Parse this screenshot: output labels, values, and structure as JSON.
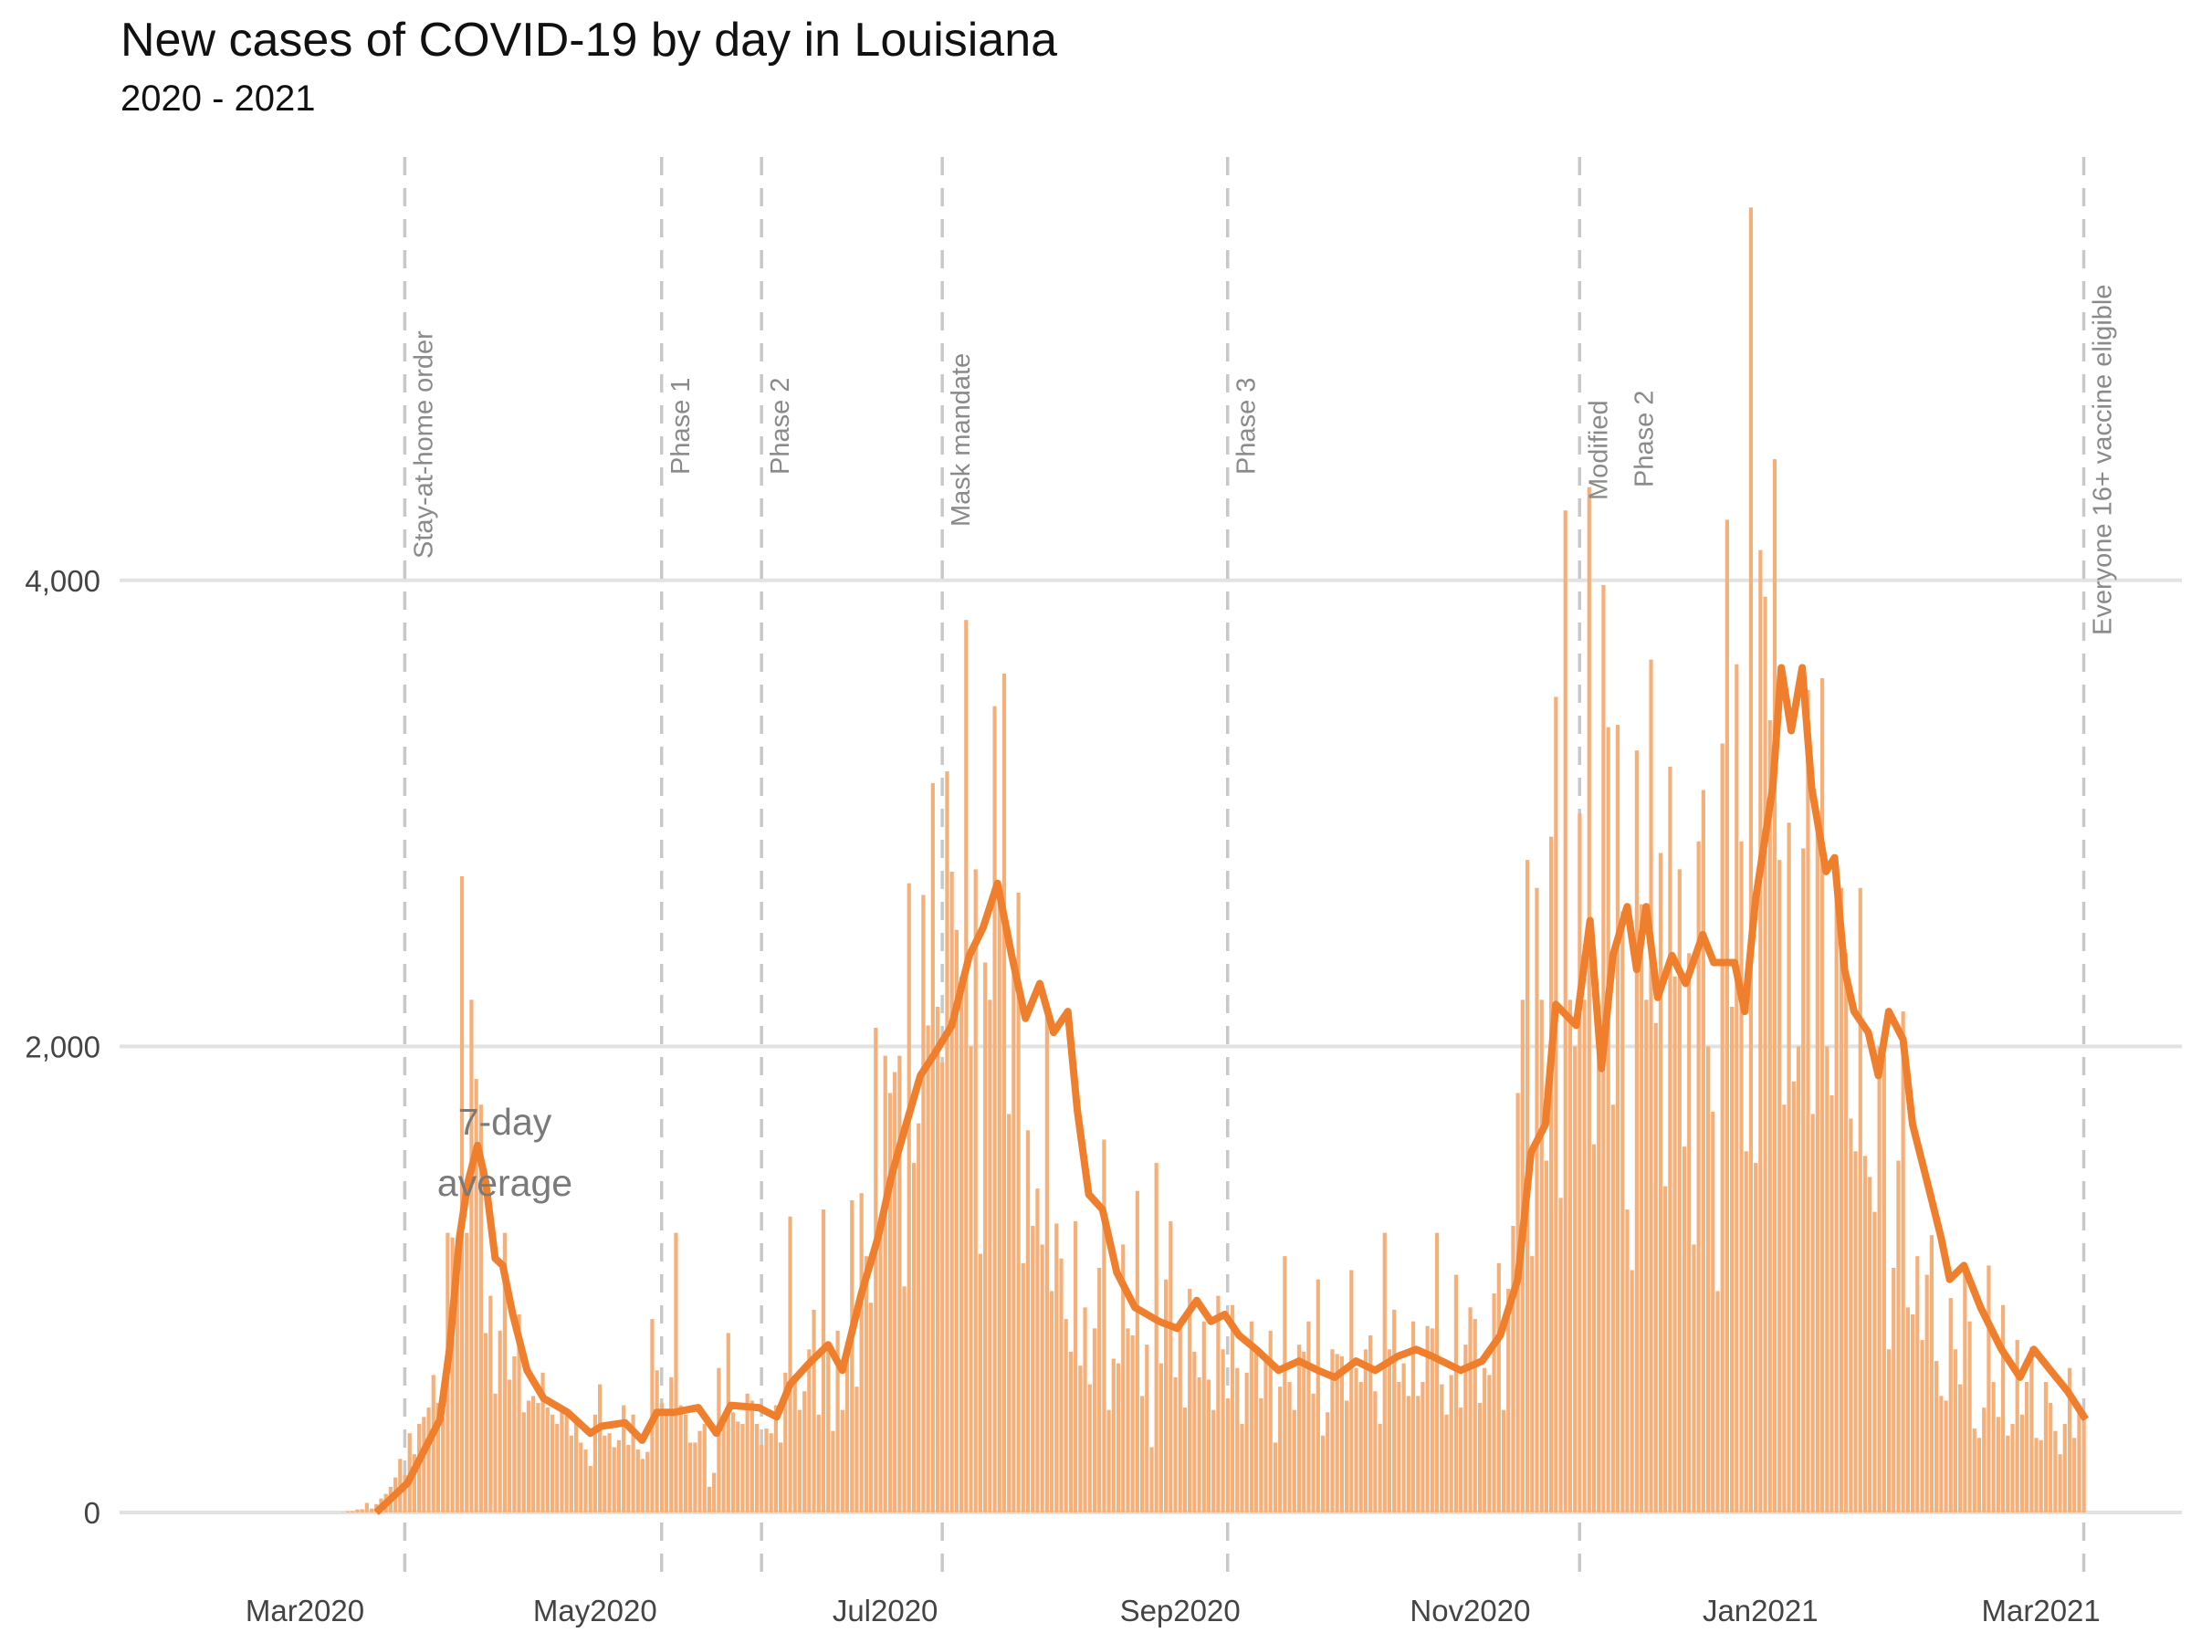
{
  "chart_data": {
    "type": "bar",
    "title": "New cases of COVID-19 by day in Louisiana",
    "subtitle": "2020 - 2021",
    "xlabel": "",
    "ylabel": "",
    "x_unit": "days since 2020-03-01",
    "xlim": [
      -21,
      396
    ],
    "ylim": [
      0,
      5600
    ],
    "grid": true,
    "y_ticks": [
      {
        "value": 0,
        "label": "0"
      },
      {
        "value": 2000,
        "label": "2,000"
      },
      {
        "value": 4000,
        "label": "4,000"
      }
    ],
    "x_ticks": [
      {
        "day": 0,
        "label": "Mar2020"
      },
      {
        "day": 61,
        "label": "May2020"
      },
      {
        "day": 122,
        "label": "Jul2020"
      },
      {
        "day": 184,
        "label": "Sep2020"
      },
      {
        "day": 245,
        "label": "Nov2020"
      },
      {
        "day": 306,
        "label": "Jan2021"
      },
      {
        "day": 365,
        "label": "Mar2021"
      }
    ],
    "events": [
      {
        "day": 21,
        "lines": [
          "Stay-at-home order"
        ]
      },
      {
        "day": 75,
        "lines": [
          "Phase 1"
        ]
      },
      {
        "day": 96,
        "lines": [
          "Phase 2"
        ]
      },
      {
        "day": 134,
        "lines": [
          "Mask mandate"
        ]
      },
      {
        "day": 194,
        "lines": [
          "Phase 3"
        ]
      },
      {
        "day": 268,
        "lines": [
          "Modified",
          "Phase 2"
        ]
      },
      {
        "day": 374,
        "lines": [
          "Everyone 16+ vaccine eligible"
        ]
      }
    ],
    "annotation": {
      "lines": [
        "7-day",
        "average"
      ]
    },
    "bar_color": "#f5b07a",
    "line_color": "#ef7f2d",
    "daily_start_day": 8,
    "daily_cases": [
      1,
      5,
      6,
      13,
      14,
      41,
      17,
      36,
      60,
      80,
      110,
      150,
      230,
      160,
      340,
      250,
      380,
      410,
      450,
      590,
      470,
      410,
      1200,
      1180,
      1050,
      2730,
      1200,
      2200,
      1860,
      1750,
      770,
      930,
      510,
      780,
      1200,
      570,
      670,
      850,
      430,
      480,
      500,
      470,
      600,
      450,
      420,
      380,
      430,
      420,
      330,
      380,
      300,
      270,
      200,
      420,
      550,
      330,
      340,
      280,
      310,
      460,
      290,
      420,
      270,
      230,
      260,
      830,
      610,
      470,
      420,
      580,
      1200,
      460,
      420,
      300,
      300,
      350,
      380,
      110,
      170,
      620,
      400,
      770,
      430,
      390,
      380,
      510,
      480,
      380,
      290,
      360,
      340,
      460,
      300,
      600,
      1270,
      560,
      440,
      520,
      700,
      870,
      420,
      1300,
      700,
      350,
      780,
      440,
      700,
      1340,
      540,
      1370,
      1100,
      900,
      2080,
      1230,
      1960,
      1800,
      1890,
      1960,
      970,
      2700,
      1500,
      1670,
      2650,
      2090,
      3130,
      2170,
      1930,
      3180,
      2750,
      2500,
      2300,
      3830,
      2000,
      2760,
      1110,
      2360,
      2200,
      3460,
      2640,
      3600,
      1710,
      2330,
      2660,
      1070,
      1640,
      1230,
      1390,
      1150,
      2150,
      950,
      1240,
      1090,
      830,
      690,
      1250,
      630,
      880,
      550,
      790,
      1050,
      1600,
      440,
      660,
      640,
      1150,
      790,
      760,
      1380,
      500,
      720,
      280,
      1500,
      640,
      1000,
      1250,
      580,
      810,
      450,
      960,
      690,
      580,
      820,
      570,
      440,
      930,
      700,
      490,
      890,
      620,
      380,
      600,
      820,
      700,
      490,
      670,
      780,
      300,
      540,
      1100,
      560,
      440,
      720,
      690,
      820,
      510,
      1000,
      330,
      430,
      700,
      680,
      670,
      480,
      1040,
      620,
      560,
      700,
      760,
      520,
      380,
      1200,
      700,
      870,
      560,
      640,
      500,
      820,
      500,
      560,
      800,
      790,
      1200,
      550,
      420,
      590,
      1020,
      450,
      720,
      880,
      830,
      470,
      620,
      590,
      940,
      1070,
      440,
      960,
      1230,
      1800,
      2200,
      2800,
      1100,
      2680,
      2200,
      1510,
      2900,
      3500,
      1350,
      4300,
      2200,
      2000,
      3000,
      2200,
      4400,
      1580,
      2000,
      3980,
      3370,
      1750,
      3380,
      2580,
      1300,
      1040,
      3270,
      2610,
      2200,
      3660,
      2100,
      2830,
      1400,
      3200,
      2300,
      2760,
      1570,
      2400,
      1150,
      2880,
      3100,
      2000,
      1720,
      950,
      3300,
      4260,
      2170,
      3640,
      2880,
      1550,
      5600,
      1500,
      4130,
      3930,
      3400,
      4520,
      2800,
      1750,
      2960,
      1850,
      2000,
      2850,
      3530,
      1710,
      2950,
      3580,
      2000,
      1790,
      2700,
      2680,
      2400,
      1690,
      1550,
      2680,
      1530,
      1440,
      1290,
      2000,
      1960,
      700,
      1050,
      1510,
      2150,
      880,
      850,
      1100,
      740,
      1020,
      1190,
      650,
      500,
      480,
      920,
      700,
      550,
      1050,
      820,
      360,
      320,
      450,
      1060,
      560,
      410,
      890,
      330,
      380,
      740,
      420,
      560,
      710,
      320,
      310,
      560,
      470,
      350,
      250,
      380,
      620,
      320,
      460,
      400
    ],
    "seven_day_average": [
      [
        15,
        0
      ],
      [
        21.6,
        127
      ],
      [
        28.4,
        400
      ],
      [
        30.4,
        700
      ],
      [
        32.5,
        1180
      ],
      [
        34.3,
        1420
      ],
      [
        36.3,
        1575
      ],
      [
        38,
        1420
      ],
      [
        40,
        1090
      ],
      [
        41.6,
        1060
      ],
      [
        43.7,
        850
      ],
      [
        46.7,
        610
      ],
      [
        50.2,
        490
      ],
      [
        55.2,
        430
      ],
      [
        60,
        340
      ],
      [
        62.3,
        370
      ],
      [
        67.3,
        385
      ],
      [
        70.9,
        310
      ],
      [
        74,
        430
      ],
      [
        77.7,
        430
      ],
      [
        82.7,
        450
      ],
      [
        86.5,
        340
      ],
      [
        89.5,
        460
      ],
      [
        95.4,
        450
      ],
      [
        99.2,
        410
      ],
      [
        102,
        550
      ],
      [
        106,
        640
      ],
      [
        110,
        720
      ],
      [
        113,
        610
      ],
      [
        117,
        940
      ],
      [
        120.5,
        1180
      ],
      [
        123.4,
        1450
      ],
      [
        126.4,
        1665
      ],
      [
        129.4,
        1875
      ],
      [
        132.3,
        1965
      ],
      [
        136,
        2090
      ],
      [
        139.7,
        2390
      ],
      [
        142.6,
        2510
      ],
      [
        145.6,
        2700
      ],
      [
        148.6,
        2390
      ],
      [
        151.5,
        2120
      ],
      [
        154.5,
        2270
      ],
      [
        157.4,
        2060
      ],
      [
        160.4,
        2150
      ],
      [
        162.4,
        1725
      ],
      [
        164.8,
        1365
      ],
      [
        167.7,
        1300
      ],
      [
        170.7,
        1030
      ],
      [
        174.5,
        880
      ],
      [
        179.6,
        820
      ],
      [
        183.4,
        790
      ],
      [
        187.5,
        910
      ],
      [
        190.5,
        820
      ],
      [
        193.4,
        850
      ],
      [
        196.4,
        760
      ],
      [
        200,
        700
      ],
      [
        204.7,
        610
      ],
      [
        209,
        650
      ],
      [
        213,
        610
      ],
      [
        216.5,
        580
      ],
      [
        221,
        650
      ],
      [
        225,
        610
      ],
      [
        229.8,
        670
      ],
      [
        233.6,
        700
      ],
      [
        237,
        670
      ],
      [
        243,
        610
      ],
      [
        247.5,
        650
      ],
      [
        251.3,
        760
      ],
      [
        255,
        1000
      ],
      [
        257.8,
        1545
      ],
      [
        260.8,
        1665
      ],
      [
        263,
        2180
      ],
      [
        267.3,
        2090
      ],
      [
        270.2,
        2540
      ],
      [
        272.6,
        1905
      ],
      [
        275,
        2390
      ],
      [
        278,
        2600
      ],
      [
        280,
        2330
      ],
      [
        282,
        2600
      ],
      [
        284.4,
        2210
      ],
      [
        287.4,
        2390
      ],
      [
        290.3,
        2270
      ],
      [
        293.9,
        2480
      ],
      [
        296.2,
        2360
      ],
      [
        300.6,
        2360
      ],
      [
        302.7,
        2150
      ],
      [
        305,
        2630
      ],
      [
        308.6,
        3110
      ],
      [
        310.4,
        3625
      ],
      [
        312.5,
        3355
      ],
      [
        314.8,
        3625
      ],
      [
        316.8,
        3110
      ],
      [
        319.8,
        2750
      ],
      [
        321.6,
        2810
      ],
      [
        323.7,
        2330
      ],
      [
        325.7,
        2150
      ],
      [
        328.7,
        2060
      ],
      [
        330.8,
        1875
      ],
      [
        333,
        2150
      ],
      [
        336,
        2030
      ],
      [
        338,
        1665
      ],
      [
        341,
        1425
      ],
      [
        344,
        1180
      ],
      [
        345.8,
        1000
      ],
      [
        348.8,
        1060
      ],
      [
        352.3,
        880
      ],
      [
        356.7,
        700
      ],
      [
        360.6,
        580
      ],
      [
        363.5,
        700
      ],
      [
        367,
        610
      ],
      [
        370.6,
        520
      ],
      [
        374.4,
        400
      ]
    ]
  }
}
